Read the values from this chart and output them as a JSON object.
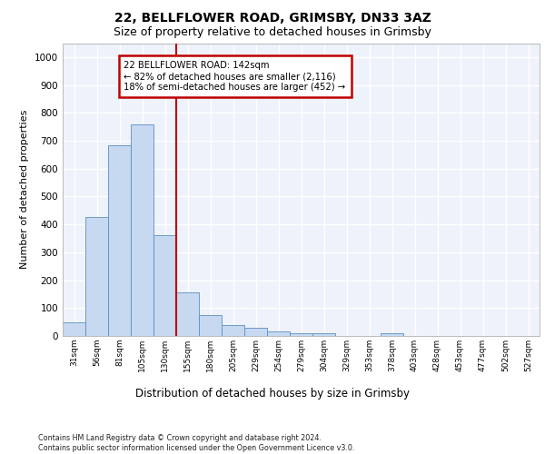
{
  "title_line1": "22, BELLFLOWER ROAD, GRIMSBY, DN33 3AZ",
  "title_line2": "Size of property relative to detached houses in Grimsby",
  "xlabel": "Distribution of detached houses by size in Grimsby",
  "ylabel": "Number of detached properties",
  "footnote": "Contains HM Land Registry data © Crown copyright and database right 2024.\nContains public sector information licensed under the Open Government Licence v3.0.",
  "bin_labels": [
    "31sqm",
    "56sqm",
    "81sqm",
    "105sqm",
    "130sqm",
    "155sqm",
    "180sqm",
    "205sqm",
    "229sqm",
    "254sqm",
    "279sqm",
    "304sqm",
    "329sqm",
    "353sqm",
    "378sqm",
    "403sqm",
    "428sqm",
    "453sqm",
    "477sqm",
    "502sqm",
    "527sqm"
  ],
  "bar_heights": [
    50,
    425,
    685,
    760,
    360,
    155,
    75,
    40,
    30,
    15,
    10,
    10,
    0,
    0,
    10,
    0,
    0,
    0,
    0,
    0,
    0
  ],
  "bar_color": "#c6d9f0",
  "bar_edge_color": "#5b8ec4",
  "vline_x": 4.5,
  "vline_color": "#c00000",
  "ylim": [
    0,
    1050
  ],
  "yticks": [
    0,
    100,
    200,
    300,
    400,
    500,
    600,
    700,
    800,
    900,
    1000
  ],
  "annotation_box_text": "22 BELLFLOWER ROAD: 142sqm\n← 82% of detached houses are smaller (2,116)\n18% of semi-detached houses are larger (452) →",
  "annotation_box_color": "#c00000",
  "bg_color": "#eef2fa",
  "grid_color": "#ffffff",
  "title1_fontsize": 10,
  "title2_fontsize": 9
}
